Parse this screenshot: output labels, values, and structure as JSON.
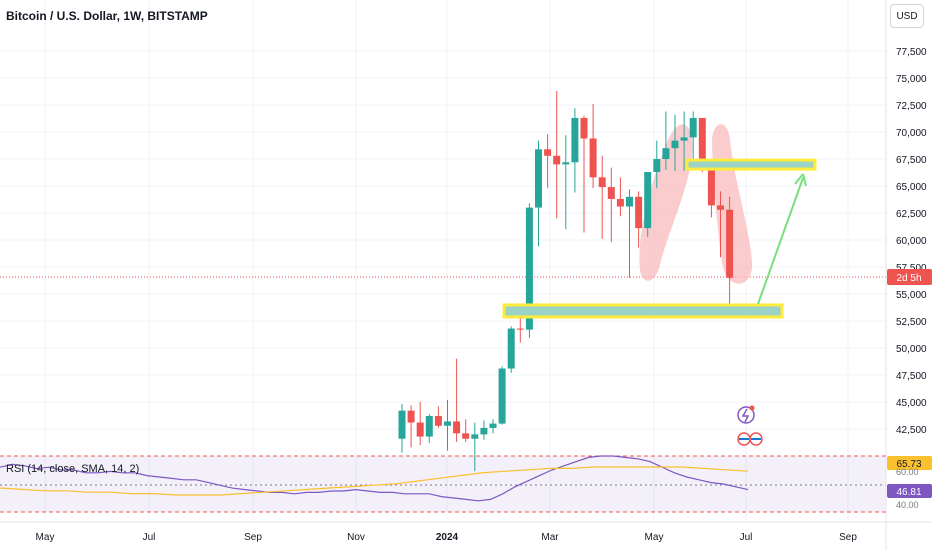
{
  "header": {
    "title": "Bitcoin / U.S. Dollar, 1W, BITSTAMP"
  },
  "currency_button": {
    "label": "USD"
  },
  "rsi": {
    "label": "RSI (14, close, SMA, 14, 2)",
    "value_badge": "65.73",
    "sma_badge": "46.81",
    "level_label": "40.00",
    "level_label_top": "60.00"
  },
  "price_badge": {
    "label": "2d 5h"
  },
  "colors": {
    "up": "#26a69a",
    "down": "#ef5350",
    "zone_fill": "#9bd3c6",
    "zone_border": "#ffeb3b",
    "highlight": "#f8bbbd",
    "arrow": "#76e07a",
    "rsi_line": "#7e57c2",
    "rsi_sma": "#fbc02d"
  },
  "chart_data": {
    "type": "candlestick",
    "title": "Bitcoin / U.S. Dollar, 1W, BITSTAMP",
    "y_ticks": [
      "77,500",
      "75,000",
      "72,500",
      "70,000",
      "67,500",
      "65,000",
      "62,500",
      "60,000",
      "57,500",
      "55,000",
      "52,500",
      "50,000",
      "47,500",
      "45,000",
      "42,500"
    ],
    "x_ticks": [
      "May",
      "Jul",
      "Sep",
      "Nov",
      "2024",
      "Mar",
      "May",
      "Jul",
      "Sep"
    ],
    "ylim": [
      40000,
      80000
    ],
    "candles": [
      {
        "o": 41600,
        "h": 44800,
        "l": 40300,
        "c": 44200
      },
      {
        "o": 44200,
        "h": 44700,
        "l": 40800,
        "c": 43100
      },
      {
        "o": 43100,
        "h": 45000,
        "l": 41000,
        "c": 41800
      },
      {
        "o": 41800,
        "h": 43900,
        "l": 41200,
        "c": 43700
      },
      {
        "o": 43700,
        "h": 44600,
        "l": 42600,
        "c": 42800
      },
      {
        "o": 42800,
        "h": 45200,
        "l": 40500,
        "c": 43200
      },
      {
        "o": 43200,
        "h": 49000,
        "l": 41300,
        "c": 42100
      },
      {
        "o": 42100,
        "h": 43400,
        "l": 41300,
        "c": 41600
      },
      {
        "o": 41600,
        "h": 43100,
        "l": 38600,
        "c": 42000
      },
      {
        "o": 42000,
        "h": 43300,
        "l": 41500,
        "c": 42600
      },
      {
        "o": 42600,
        "h": 43400,
        "l": 42100,
        "c": 43000
      },
      {
        "o": 43000,
        "h": 48300,
        "l": 42900,
        "c": 48100
      },
      {
        "o": 48100,
        "h": 52000,
        "l": 47700,
        "c": 51800
      },
      {
        "o": 51800,
        "h": 52800,
        "l": 50500,
        "c": 51700
      },
      {
        "o": 51700,
        "h": 63400,
        "l": 50900,
        "c": 63000
      },
      {
        "o": 63000,
        "h": 69200,
        "l": 59400,
        "c": 68400
      },
      {
        "o": 68400,
        "h": 69800,
        "l": 64800,
        "c": 67800
      },
      {
        "o": 67800,
        "h": 73800,
        "l": 62000,
        "c": 67000
      },
      {
        "o": 67000,
        "h": 69700,
        "l": 61000,
        "c": 67200
      },
      {
        "o": 67200,
        "h": 72200,
        "l": 64400,
        "c": 71300
      },
      {
        "o": 71300,
        "h": 71500,
        "l": 60700,
        "c": 69400
      },
      {
        "o": 69400,
        "h": 72600,
        "l": 64800,
        "c": 65800
      },
      {
        "o": 65800,
        "h": 67800,
        "l": 60100,
        "c": 64900
      },
      {
        "o": 64900,
        "h": 66700,
        "l": 59800,
        "c": 63800
      },
      {
        "o": 63800,
        "h": 65800,
        "l": 62200,
        "c": 63100
      },
      {
        "o": 63100,
        "h": 64700,
        "l": 56500,
        "c": 64000
      },
      {
        "o": 64000,
        "h": 64500,
        "l": 59300,
        "c": 61100
      },
      {
        "o": 61100,
        "h": 66300,
        "l": 60300,
        "c": 66300
      },
      {
        "o": 66300,
        "h": 69200,
        "l": 64800,
        "c": 67500
      },
      {
        "o": 67500,
        "h": 71900,
        "l": 66500,
        "c": 68500
      },
      {
        "o": 68500,
        "h": 71600,
        "l": 66400,
        "c": 69200
      },
      {
        "o": 69200,
        "h": 71900,
        "l": 66400,
        "c": 69500
      },
      {
        "o": 69500,
        "h": 71900,
        "l": 66800,
        "c": 71300
      },
      {
        "o": 71300,
        "h": 71300,
        "l": 66300,
        "c": 66600
      },
      {
        "o": 66600,
        "h": 67100,
        "l": 62100,
        "c": 63200
      },
      {
        "o": 63200,
        "h": 64500,
        "l": 58400,
        "c": 62800
      },
      {
        "o": 62800,
        "h": 64000,
        "l": 53600,
        "c": 56500
      }
    ],
    "rsi_values": [
      62,
      64,
      63,
      61,
      62,
      60,
      60,
      58,
      58,
      59,
      58,
      58,
      56,
      55,
      54,
      53,
      53,
      51,
      49,
      47,
      46,
      45,
      44,
      44,
      43,
      44,
      44,
      45,
      45,
      46,
      45,
      44,
      44,
      43,
      43,
      43,
      41,
      40,
      39,
      38,
      39,
      43,
      48,
      52,
      56,
      60,
      63,
      66,
      69,
      70,
      70,
      69,
      68,
      66,
      62,
      58,
      55,
      53,
      51,
      50,
      48,
      46
    ],
    "rsi_sma_values": [
      50,
      49,
      48,
      48,
      47,
      47,
      46,
      46,
      45,
      45,
      45,
      46,
      47,
      48,
      49,
      50,
      51,
      52,
      53,
      55,
      57,
      59,
      61,
      62,
      63,
      64,
      64,
      65,
      65,
      65,
      65,
      65,
      64,
      63,
      62
    ],
    "annotations": {
      "support_zone": [
        52800,
        53800
      ],
      "resistance_zone": [
        66600,
        67400
      ]
    }
  }
}
